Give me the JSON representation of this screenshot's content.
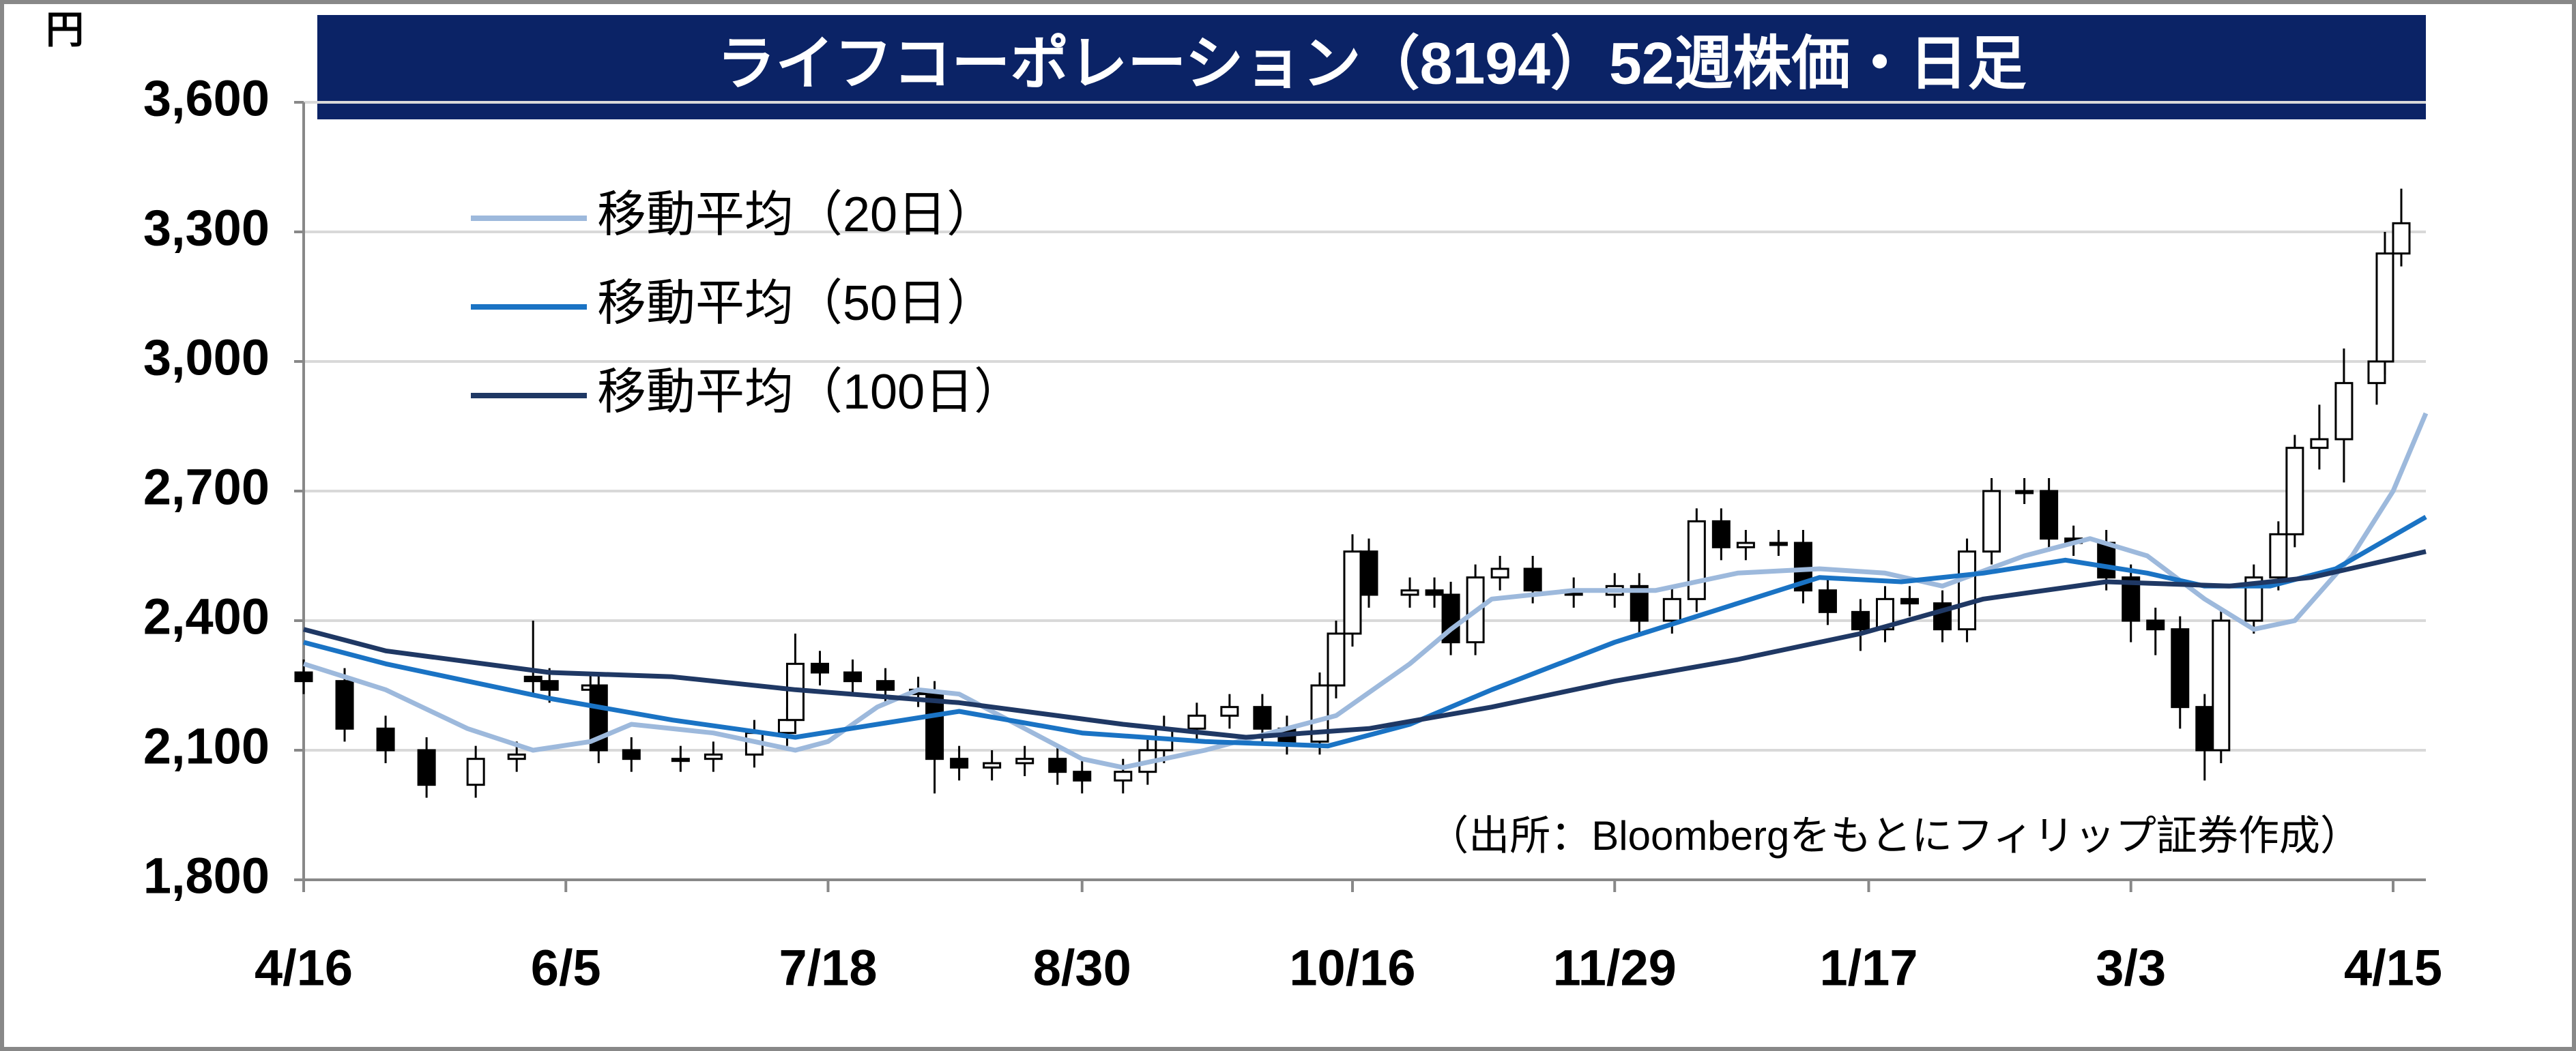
{
  "chart_data": {
    "type": "candlestick",
    "title": "ライフコーポレーション（8194）52週株価・日足",
    "y_unit": "円",
    "source": "（出所：Bloombergをもとにフィリップ証券作成）",
    "xlim": [
      0,
      259
    ],
    "xticks": [
      {
        "value": 0,
        "label": "4/16"
      },
      {
        "value": 32,
        "label": "6/5"
      },
      {
        "value": 64,
        "label": "7/18"
      },
      {
        "value": 95,
        "label": "8/30"
      },
      {
        "value": 128,
        "label": "10/16"
      },
      {
        "value": 160,
        "label": "11/29"
      },
      {
        "value": 191,
        "label": "1/17"
      },
      {
        "value": 223,
        "label": "3/3"
      },
      {
        "value": 255,
        "label": "4/15"
      }
    ],
    "ylim": [
      1800,
      3600
    ],
    "yticks": [
      {
        "value": 1800,
        "label": "1,800"
      },
      {
        "value": 2100,
        "label": "2,100"
      },
      {
        "value": 2400,
        "label": "2,400"
      },
      {
        "value": 2700,
        "label": "2,700"
      },
      {
        "value": 3000,
        "label": "3,000"
      },
      {
        "value": 3300,
        "label": "3,300"
      },
      {
        "value": 3600,
        "label": "3,600"
      }
    ],
    "grid": true,
    "candles": {
      "up_color": "#ffffff",
      "down_color": "#000000",
      "x": [
        0,
        5,
        10,
        15,
        21,
        26,
        28,
        30,
        35,
        36,
        40,
        46,
        50,
        55,
        59,
        60,
        63,
        67,
        71,
        75,
        77,
        80,
        84,
        88,
        92,
        95,
        100,
        103,
        105,
        109,
        113,
        117,
        120,
        124,
        126,
        128,
        130,
        135,
        138,
        140,
        143,
        146,
        150,
        155,
        160,
        163,
        167,
        170,
        173,
        176,
        180,
        183,
        186,
        190,
        193,
        196,
        200,
        203,
        206,
        210,
        213,
        216,
        220,
        223,
        226,
        229,
        232,
        234,
        238,
        241,
        243,
        246,
        249,
        253,
        254,
        256
      ],
      "open": [
        2280,
        2260,
        2150,
        2100,
        2020,
        2080,
        2270,
        2260,
        2240,
        2250,
        2100,
        2080,
        2080,
        2090,
        2140,
        2170,
        2300,
        2280,
        2260,
        2240,
        2230,
        2080,
        2060,
        2070,
        2080,
        2050,
        2030,
        2050,
        2100,
        2150,
        2180,
        2200,
        2150,
        2120,
        2250,
        2370,
        2560,
        2460,
        2470,
        2460,
        2350,
        2500,
        2520,
        2470,
        2460,
        2480,
        2400,
        2450,
        2630,
        2570,
        2580,
        2580,
        2470,
        2420,
        2380,
        2450,
        2440,
        2380,
        2560,
        2700,
        2700,
        2590,
        2580,
        2500,
        2400,
        2380,
        2200,
        2100,
        2400,
        2500,
        2600,
        2800,
        2820,
        2950,
        3000,
        3250
      ],
      "high": [
        2310,
        2290,
        2180,
        2130,
        2110,
        2120,
        2400,
        2290,
        2280,
        2280,
        2130,
        2110,
        2120,
        2170,
        2200,
        2370,
        2330,
        2310,
        2290,
        2270,
        2260,
        2110,
        2100,
        2110,
        2110,
        2080,
        2080,
        2130,
        2180,
        2210,
        2230,
        2230,
        2180,
        2280,
        2400,
        2600,
        2590,
        2500,
        2500,
        2490,
        2530,
        2550,
        2550,
        2500,
        2510,
        2510,
        2480,
        2660,
        2660,
        2610,
        2610,
        2610,
        2500,
        2450,
        2480,
        2480,
        2470,
        2590,
        2730,
        2730,
        2730,
        2620,
        2610,
        2530,
        2430,
        2410,
        2230,
        2430,
        2530,
        2630,
        2830,
        2900,
        3030,
        3050,
        3300,
        3400
      ],
      "low": [
        2230,
        2120,
        2070,
        1990,
        1990,
        2050,
        2230,
        2210,
        2210,
        2070,
        2050,
        2050,
        2050,
        2060,
        2110,
        2140,
        2250,
        2230,
        2210,
        2200,
        2000,
        2030,
        2030,
        2040,
        2020,
        2000,
        2000,
        2020,
        2070,
        2120,
        2150,
        2120,
        2090,
        2090,
        2220,
        2340,
        2430,
        2430,
        2430,
        2320,
        2320,
        2470,
        2440,
        2430,
        2430,
        2370,
        2370,
        2420,
        2540,
        2540,
        2550,
        2440,
        2390,
        2330,
        2350,
        2410,
        2350,
        2350,
        2530,
        2670,
        2560,
        2550,
        2470,
        2350,
        2320,
        2150,
        2030,
        2070,
        2370,
        2470,
        2570,
        2750,
        2720,
        2900,
        2970,
        3220
      ],
      "close": [
        2260,
        2150,
        2100,
        2020,
        2080,
        2090,
        2260,
        2240,
        2250,
        2100,
        2080,
        2080,
        2090,
        2140,
        2170,
        2300,
        2280,
        2260,
        2240,
        2230,
        2080,
        2060,
        2070,
        2080,
        2050,
        2030,
        2050,
        2100,
        2150,
        2180,
        2200,
        2150,
        2120,
        2250,
        2370,
        2560,
        2460,
        2470,
        2460,
        2350,
        2500,
        2520,
        2470,
        2460,
        2480,
        2400,
        2450,
        2630,
        2570,
        2580,
        2580,
        2470,
        2420,
        2380,
        2450,
        2440,
        2380,
        2560,
        2700,
        2700,
        2590,
        2580,
        2500,
        2400,
        2380,
        2200,
        2100,
        2400,
        2500,
        2600,
        2800,
        2820,
        2950,
        3000,
        3250,
        3320
      ]
    },
    "series": [
      {
        "name": "移動平均（20日）",
        "color": "#9db9dc",
        "x": [
          0,
          10,
          20,
          28,
          35,
          40,
          50,
          60,
          64,
          70,
          75,
          80,
          88,
          95,
          100,
          110,
          120,
          126,
          135,
          140,
          145,
          155,
          165,
          175,
          185,
          193,
          200,
          210,
          218,
          225,
          232,
          238,
          243,
          250,
          255,
          259
        ],
        "values": [
          2300,
          2240,
          2150,
          2100,
          2120,
          2160,
          2140,
          2100,
          2120,
          2200,
          2240,
          2230,
          2150,
          2080,
          2060,
          2100,
          2150,
          2180,
          2300,
          2380,
          2450,
          2470,
          2470,
          2510,
          2520,
          2510,
          2480,
          2550,
          2590,
          2550,
          2450,
          2380,
          2400,
          2550,
          2700,
          2880
        ]
      },
      {
        "name": "移動平均（50日）",
        "color": "#1a73c4",
        "x": [
          0,
          10,
          20,
          30,
          45,
          60,
          70,
          80,
          95,
          110,
          125,
          135,
          145,
          160,
          175,
          185,
          195,
          205,
          215,
          225,
          232,
          240,
          248,
          259
        ],
        "values": [
          2350,
          2300,
          2260,
          2220,
          2170,
          2130,
          2160,
          2190,
          2140,
          2120,
          2110,
          2160,
          2240,
          2350,
          2440,
          2500,
          2490,
          2510,
          2540,
          2510,
          2480,
          2480,
          2520,
          2640
        ]
      },
      {
        "name": "移動平均（100日）",
        "color": "#1f3864",
        "x": [
          0,
          10,
          30,
          45,
          60,
          80,
          100,
          115,
          130,
          145,
          160,
          175,
          190,
          205,
          220,
          235,
          245,
          259
        ],
        "values": [
          2380,
          2330,
          2280,
          2270,
          2240,
          2210,
          2160,
          2130,
          2150,
          2200,
          2260,
          2310,
          2370,
          2450,
          2490,
          2480,
          2500,
          2560
        ]
      }
    ]
  }
}
